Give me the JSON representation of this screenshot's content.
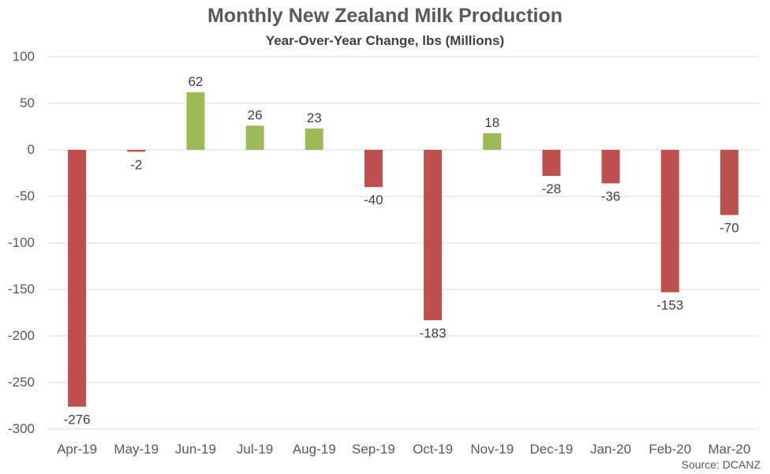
{
  "colors": {
    "positive": "#9BBB59",
    "negative": "#C0504D",
    "grid": "#D9D9D9",
    "axis_text": "#595959",
    "label_text": "#404040"
  },
  "chart_data": {
    "type": "bar",
    "title": "Monthly New Zealand Milk Production",
    "subtitle": "Year-Over-Year Change, lbs (Millions)",
    "source": "Source: DCANZ",
    "categories": [
      "Apr-19",
      "May-19",
      "Jun-19",
      "Jul-19",
      "Aug-19",
      "Sep-19",
      "Oct-19",
      "Nov-19",
      "Dec-19",
      "Jan-20",
      "Feb-20",
      "Mar-20"
    ],
    "values": [
      -276,
      -2,
      62,
      26,
      23,
      -40,
      -183,
      18,
      -28,
      -36,
      -153,
      -70
    ],
    "ylim": [
      -300,
      100
    ],
    "yticks": [
      100,
      50,
      0,
      -50,
      -100,
      -150,
      -200,
      -250,
      -300
    ],
    "grid": true,
    "data_labels": true,
    "xlabel": "",
    "ylabel": ""
  }
}
